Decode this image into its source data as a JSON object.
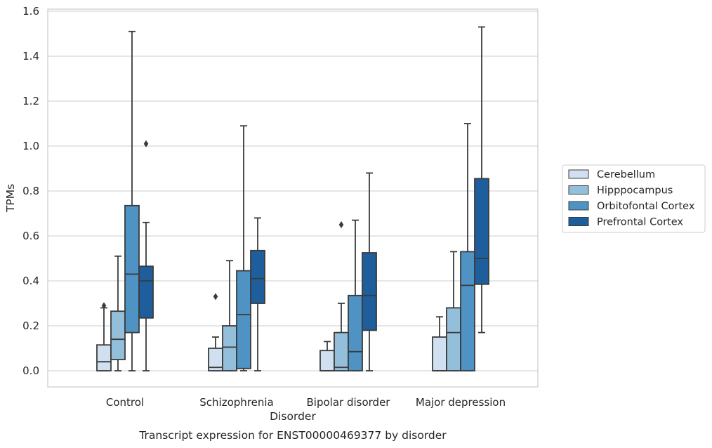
{
  "chart_data": {
    "type": "box",
    "caption": "Transcript expression for ENST00000469377 by disorder",
    "xlabel": "Disorder",
    "ylabel": "TPMs",
    "ylim": [
      -0.07,
      1.61
    ],
    "yticks": [
      "0.0",
      "0.2",
      "0.4",
      "0.6",
      "0.8",
      "1.0",
      "1.2",
      "1.4",
      "1.6"
    ],
    "grid": true,
    "legend_position": "right",
    "categories": [
      "Control",
      "Schizophrenia",
      "Bipolar disorder",
      "Major depression"
    ],
    "series": [
      {
        "name": "Cerebellum",
        "color": "#d0e0f0",
        "boxes": [
          {
            "whislo": 0.0,
            "q1": 0.0,
            "med": 0.04,
            "q3": 0.115,
            "whishi": 0.28,
            "fliers": [
              0.29
            ]
          },
          {
            "whislo": 0.0,
            "q1": 0.0,
            "med": 0.015,
            "q3": 0.1,
            "whishi": 0.15,
            "fliers": [
              0.33
            ]
          },
          {
            "whislo": 0.0,
            "q1": 0.0,
            "med": 0.0,
            "q3": 0.09,
            "whishi": 0.13,
            "fliers": []
          },
          {
            "whislo": 0.0,
            "q1": 0.0,
            "med": 0.0,
            "q3": 0.15,
            "whishi": 0.24,
            "fliers": []
          }
        ]
      },
      {
        "name": "Hipppocampus",
        "color": "#93bfdb",
        "boxes": [
          {
            "whislo": 0.0,
            "q1": 0.05,
            "med": 0.14,
            "q3": 0.265,
            "whishi": 0.51,
            "fliers": []
          },
          {
            "whislo": 0.0,
            "q1": 0.0,
            "med": 0.105,
            "q3": 0.2,
            "whishi": 0.49,
            "fliers": []
          },
          {
            "whislo": 0.0,
            "q1": 0.0,
            "med": 0.015,
            "q3": 0.17,
            "whishi": 0.3,
            "fliers": [
              0.65
            ]
          },
          {
            "whislo": 0.0,
            "q1": 0.0,
            "med": 0.17,
            "q3": 0.28,
            "whishi": 0.53,
            "fliers": []
          }
        ]
      },
      {
        "name": "Orbitofontal Cortex",
        "color": "#4f92c4",
        "boxes": [
          {
            "whislo": 0.0,
            "q1": 0.17,
            "med": 0.43,
            "q3": 0.735,
            "whishi": 1.51,
            "fliers": []
          },
          {
            "whislo": 0.0,
            "q1": 0.01,
            "med": 0.25,
            "q3": 0.445,
            "whishi": 1.09,
            "fliers": []
          },
          {
            "whislo": 0.0,
            "q1": 0.0,
            "med": 0.085,
            "q3": 0.335,
            "whishi": 0.67,
            "fliers": []
          },
          {
            "whislo": 0.0,
            "q1": 0.0,
            "med": 0.38,
            "q3": 0.53,
            "whishi": 1.1,
            "fliers": []
          }
        ]
      },
      {
        "name": "Prefrontal Cortex",
        "color": "#1f5e9c",
        "boxes": [
          {
            "whislo": 0.0,
            "q1": 0.235,
            "med": 0.4,
            "q3": 0.465,
            "whishi": 0.66,
            "fliers": [
              1.01
            ]
          },
          {
            "whislo": 0.0,
            "q1": 0.3,
            "med": 0.41,
            "q3": 0.535,
            "whishi": 0.68,
            "fliers": []
          },
          {
            "whislo": 0.0,
            "q1": 0.18,
            "med": 0.335,
            "q3": 0.525,
            "whishi": 0.88,
            "fliers": []
          },
          {
            "whislo": 0.17,
            "q1": 0.385,
            "med": 0.5,
            "q3": 0.855,
            "whishi": 1.53,
            "fliers": []
          }
        ]
      }
    ]
  }
}
